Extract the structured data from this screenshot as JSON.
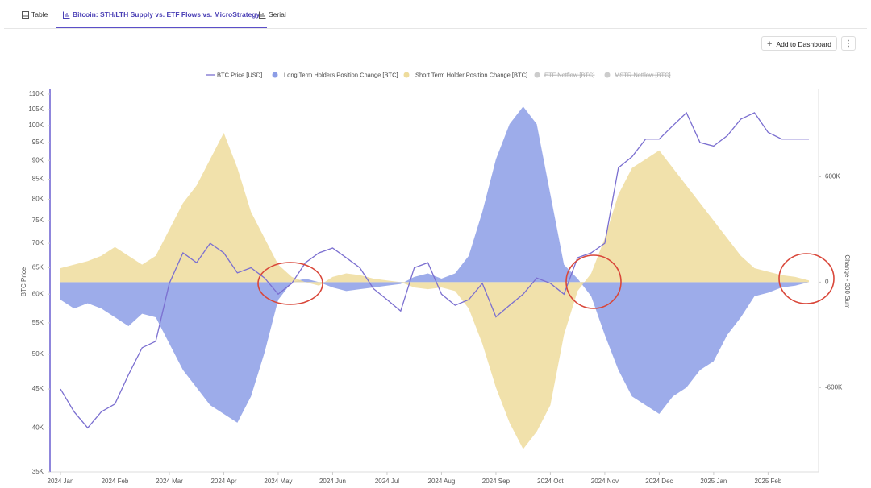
{
  "tabs": [
    "Table",
    "Bitcoin: STH/LTH Supply vs. ETF Flows vs. MicroStrategy",
    "Serial"
  ],
  "button": "Add to Dashboard",
  "chart_data": {
    "type": "line",
    "categories": [
      "2024 Jan",
      null,
      null,
      null,
      "2024 Feb",
      null,
      null,
      null,
      "2024 Mar",
      null,
      null,
      null,
      "2024 Apr",
      null,
      null,
      null,
      "2024 May",
      null,
      null,
      null,
      "2024 Jun",
      null,
      null,
      null,
      "2024 Jul",
      null,
      null,
      null,
      "2024 Aug",
      null,
      null,
      null,
      "2024 Sep",
      null,
      null,
      null,
      "2024 Oct",
      null,
      null,
      null,
      "2024 Nov",
      null,
      null,
      null,
      "2024 Dec",
      null,
      null,
      null,
      "2025 Jan",
      null,
      null,
      null,
      "2025 Feb",
      null,
      null,
      null
    ],
    "series": [
      {
        "name": "BTC Price [USD]",
        "color": "#7b6fd0",
        "kind": "line",
        "axis": "y",
        "values": [
          45000,
          42000,
          40000,
          42000,
          43000,
          47000,
          51000,
          52000,
          62000,
          68000,
          66000,
          70000,
          68000,
          64000,
          65000,
          63000,
          60000,
          62000,
          66000,
          68000,
          69000,
          67000,
          65000,
          61000,
          59000,
          57000,
          65000,
          66000,
          60000,
          58000,
          59000,
          62000,
          56000,
          58000,
          60000,
          63000,
          62000,
          60000,
          67000,
          68000,
          70000,
          88000,
          91000,
          96000,
          96000,
          100000,
          104000,
          95000,
          94000,
          97000,
          102000,
          104000,
          98000,
          96000,
          96000,
          96000
        ]
      },
      {
        "name": "Long Term Holders Position Change [BTC]",
        "color": "#8c9de6",
        "kind": "area",
        "axis": "y2",
        "values": [
          -100000,
          -150000,
          -120000,
          -150000,
          -200000,
          -250000,
          -180000,
          -200000,
          -350000,
          -500000,
          -600000,
          -700000,
          -750000,
          -800000,
          -650000,
          -400000,
          -100000,
          0,
          20000,
          0,
          -30000,
          -50000,
          -40000,
          -30000,
          -20000,
          -10000,
          30000,
          50000,
          20000,
          50000,
          150000,
          400000,
          700000,
          900000,
          1000000,
          900000,
          500000,
          100000,
          20000,
          -80000,
          -300000,
          -500000,
          -650000,
          -700000,
          -750000,
          -650000,
          -600000,
          -500000,
          -450000,
          -300000,
          -200000,
          -80000,
          -60000,
          -30000,
          -20000,
          0
        ]
      },
      {
        "name": "Short Term Holder Position Change [BTC]",
        "color": "#eedc9c",
        "kind": "area",
        "axis": "y2",
        "values": [
          80000,
          100000,
          120000,
          150000,
          200000,
          150000,
          100000,
          150000,
          300000,
          450000,
          550000,
          700000,
          850000,
          650000,
          400000,
          250000,
          100000,
          30000,
          0,
          -20000,
          30000,
          50000,
          40000,
          20000,
          10000,
          0,
          -30000,
          -40000,
          -30000,
          -50000,
          -150000,
          -350000,
          -600000,
          -800000,
          -950000,
          -850000,
          -700000,
          -300000,
          -50000,
          50000,
          250000,
          500000,
          650000,
          700000,
          750000,
          650000,
          550000,
          450000,
          350000,
          250000,
          150000,
          80000,
          60000,
          40000,
          30000,
          10000
        ]
      }
    ],
    "hidden_series": [
      "ETF Netflow [BTC]",
      "MSTR Netflow [BTC]"
    ],
    "ylabel": "BTC Price",
    "y2label": "Change - 300 Sum",
    "ylog": true,
    "ylim": [
      35000,
      110000
    ],
    "yticks": [
      {
        "value": 35000,
        "label": "35K"
      },
      {
        "value": 40000,
        "label": "40K"
      },
      {
        "value": 45000,
        "label": "45K"
      },
      {
        "value": 50000,
        "label": "50K"
      },
      {
        "value": 55000,
        "label": "55K"
      },
      {
        "value": 60000,
        "label": "60K"
      },
      {
        "value": 65000,
        "label": "65K"
      },
      {
        "value": 70000,
        "label": "70K"
      },
      {
        "value": 75000,
        "label": "75K"
      },
      {
        "value": 80000,
        "label": "80K"
      },
      {
        "value": 85000,
        "label": "85K"
      },
      {
        "value": 90000,
        "label": "90K"
      },
      {
        "value": 95000,
        "label": "95K"
      },
      {
        "value": 100000,
        "label": "100K"
      },
      {
        "value": 105000,
        "label": "105K"
      },
      {
        "value": 110000,
        "label": "110K"
      }
    ],
    "y2lim": [
      -1080000,
      1070000
    ],
    "y2ticks": [
      {
        "value": -600000,
        "label": "-600K"
      },
      0,
      {
        "value": 600000,
        "label": "600K"
      }
    ],
    "grid": false
  }
}
